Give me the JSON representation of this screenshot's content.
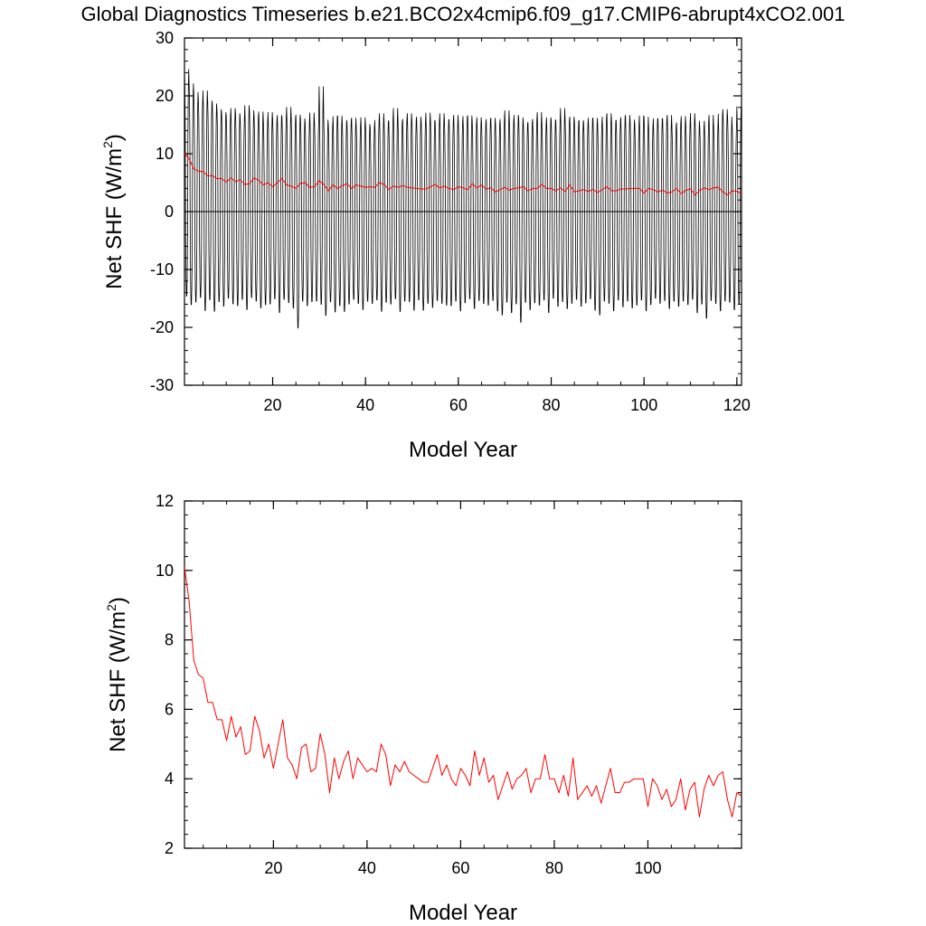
{
  "title": "Global Diagnostics Timeseries b.e21.BCO2x4cmip6.f09_g17.CMIP6-abrupt4xCO2.001",
  "colors": {
    "monthly": "#000000",
    "annual": "#ff0000",
    "zero_line": "#000000"
  },
  "chart_data": [
    {
      "type": "line",
      "xlabel": "Model Year",
      "ylabel": "Net SHF (W/m2)",
      "ylabel_main": "Net SHF (W/m",
      "ylabel_sup": "2",
      "ylabel_close": ")",
      "xlim": [
        1,
        121
      ],
      "ylim": [
        -30,
        30
      ],
      "xticks": [
        20,
        40,
        60,
        80,
        100,
        120
      ],
      "yticks": [
        -30,
        -20,
        -10,
        0,
        10,
        20,
        30
      ],
      "zero_line": true,
      "series": [
        {
          "style": "monthly",
          "color": "#000000",
          "resolution": "monthly (12 points per model year)",
          "annual_max": [
            25.0,
            22.5,
            21.0,
            19.5,
            21.3,
            19.5,
            19.0,
            18.0,
            17.5,
            17.0,
            18.2,
            17.3,
            16.6,
            18.7,
            17.8,
            16.8,
            17.6,
            16.0,
            17.5,
            16.3,
            17.0,
            16.6,
            18.4,
            16.5,
            17.1,
            16.4,
            15.6,
            17.4,
            16.0,
            22.0,
            16.2,
            15.2,
            16.8,
            16.9,
            15.7,
            16.1,
            16.5,
            15.2,
            16.6,
            15.4,
            14.9,
            16.1,
            17.3,
            16.0,
            16.0,
            18.2,
            15.9,
            16.3,
            17.3,
            16.1,
            16.7,
            16.0,
            17.4,
            16.1,
            16.0,
            17.3,
            16.1,
            16.3,
            17.0,
            15.8,
            16.8,
            16.9,
            15.7,
            16.6,
            15.7,
            16.3,
            16.5,
            15.6,
            16.3,
            17.8,
            16.0,
            17.0,
            16.6,
            15.7,
            15.7,
            16.3,
            17.5,
            15.5,
            16.6,
            16.2,
            16.0,
            18.2,
            16.2,
            16.7,
            16.0,
            16.1,
            15.6,
            16.5,
            16.5,
            15.6,
            16.7,
            17.3,
            16.1,
            16.1,
            16.6,
            17.0,
            16.2,
            15.4,
            16.9,
            16.7,
            15.0,
            16.4,
            16.4,
            16.4,
            17.0,
            15.2,
            15.7,
            16.8,
            15.5,
            17.3,
            16.0,
            15.0,
            16.0,
            17.0,
            15.0,
            17.2,
            18.0,
            16.7,
            15.0,
            18.5,
            11.0
          ],
          "annual_min": [
            -15.0,
            -16.5,
            -16.0,
            -15.2,
            -17.5,
            -15.6,
            -17.6,
            -15.9,
            -16.7,
            -15.3,
            -16.3,
            -16.6,
            -15.5,
            -17.3,
            -15.2,
            -15.8,
            -17.0,
            -16.4,
            -16.3,
            -15.4,
            -17.8,
            -15.5,
            -16.1,
            -17.0,
            -20.5,
            -15.8,
            -16.6,
            -15.9,
            -15.8,
            -16.4,
            -18.3,
            -15.9,
            -17.7,
            -16.6,
            -17.6,
            -16.3,
            -15.5,
            -16.2,
            -17.3,
            -15.8,
            -16.2,
            -15.6,
            -17.6,
            -16.0,
            -16.3,
            -15.4,
            -17.6,
            -15.8,
            -15.9,
            -17.4,
            -15.6,
            -17.4,
            -16.2,
            -16.9,
            -15.7,
            -16.2,
            -16.5,
            -16.6,
            -15.8,
            -17.5,
            -16.1,
            -15.4,
            -17.1,
            -15.7,
            -16.2,
            -16.5,
            -15.7,
            -17.5,
            -18.2,
            -16.0,
            -17.8,
            -16.3,
            -19.5,
            -16.0,
            -17.3,
            -16.1,
            -16.5,
            -15.6,
            -17.8,
            -15.3,
            -16.7,
            -15.9,
            -17.1,
            -16.2,
            -15.5,
            -16.7,
            -16.1,
            -15.4,
            -17.4,
            -18.2,
            -15.8,
            -16.2,
            -17.5,
            -15.6,
            -16.8,
            -15.8,
            -17.0,
            -16.5,
            -15.6,
            -17.5,
            -16.4,
            -15.3,
            -16.2,
            -15.7,
            -17.1,
            -15.8,
            -16.7,
            -15.8,
            -16.4,
            -15.5,
            -17.8,
            -16.3,
            -18.8,
            -15.7,
            -16.2,
            -17.5,
            -15.8,
            -16.0,
            -17.3,
            -16.4,
            -18.5
          ]
        },
        {
          "style": "annual_mean",
          "color": "#ff0000",
          "x": [
            1,
            2,
            3,
            4,
            5,
            6,
            7,
            8,
            9,
            10,
            11,
            12,
            13,
            14,
            15,
            16,
            17,
            18,
            19,
            20,
            21,
            22,
            23,
            24,
            25,
            26,
            27,
            28,
            29,
            30,
            31,
            32,
            33,
            34,
            35,
            36,
            37,
            38,
            39,
            40,
            41,
            42,
            43,
            44,
            45,
            46,
            47,
            48,
            49,
            50,
            51,
            52,
            53,
            54,
            55,
            56,
            57,
            58,
            59,
            60,
            61,
            62,
            63,
            64,
            65,
            66,
            67,
            68,
            69,
            70,
            71,
            72,
            73,
            74,
            75,
            76,
            77,
            78,
            79,
            80,
            81,
            82,
            83,
            84,
            85,
            86,
            87,
            88,
            89,
            90,
            91,
            92,
            93,
            94,
            95,
            96,
            97,
            98,
            99,
            100,
            101,
            102,
            103,
            104,
            105,
            106,
            107,
            108,
            109,
            110,
            111,
            112,
            113,
            114,
            115,
            116,
            117,
            118,
            119,
            120,
            121
          ],
          "values": [
            10.1,
            9.1,
            7.4,
            7.0,
            6.9,
            6.2,
            6.2,
            5.7,
            5.7,
            5.1,
            5.8,
            5.2,
            5.5,
            4.7,
            4.8,
            5.8,
            5.4,
            4.6,
            5.0,
            4.3,
            5.0,
            5.7,
            4.6,
            4.4,
            4.0,
            4.9,
            5.0,
            4.2,
            4.3,
            5.3,
            4.7,
            3.6,
            4.6,
            4.0,
            4.5,
            4.8,
            4.0,
            4.6,
            4.4,
            4.2,
            4.3,
            4.2,
            5.0,
            4.7,
            3.8,
            4.4,
            4.2,
            4.5,
            4.2,
            4.1,
            4.0,
            3.9,
            3.9,
            4.3,
            4.7,
            4.1,
            4.4,
            4.0,
            3.8,
            4.3,
            4.1,
            3.8,
            4.8,
            4.1,
            4.6,
            3.9,
            4.1,
            3.4,
            3.8,
            4.2,
            3.7,
            4.0,
            4.1,
            4.3,
            3.6,
            4.0,
            4.0,
            4.7,
            4.0,
            4.0,
            3.6,
            4.1,
            3.5,
            4.6,
            3.4,
            3.6,
            3.8,
            3.5,
            3.8,
            3.3,
            3.8,
            4.3,
            3.6,
            3.6,
            3.9,
            3.9,
            4.0,
            4.0,
            4.0,
            3.2,
            4.0,
            3.8,
            3.4,
            3.7,
            3.2,
            3.4,
            4.0,
            3.1,
            3.7,
            3.9,
            2.9,
            3.7,
            4.1,
            3.8,
            4.1,
            4.2,
            3.4,
            2.9,
            3.6,
            3.5,
            3.1
          ]
        }
      ]
    },
    {
      "type": "line",
      "xlabel": "Model Year",
      "ylabel": "Net SHF (W/m2)",
      "ylabel_main": "Net SHF (W/m",
      "ylabel_sup": "2",
      "ylabel_close": ")",
      "xlim": [
        1,
        120
      ],
      "ylim": [
        2,
        12
      ],
      "xticks": [
        20,
        40,
        60,
        80,
        100
      ],
      "yticks": [
        2,
        4,
        6,
        8,
        10,
        12
      ],
      "series": [
        {
          "style": "annual_mean",
          "color": "#ff0000",
          "x": [
            1,
            2,
            3,
            4,
            5,
            6,
            7,
            8,
            9,
            10,
            11,
            12,
            13,
            14,
            15,
            16,
            17,
            18,
            19,
            20,
            21,
            22,
            23,
            24,
            25,
            26,
            27,
            28,
            29,
            30,
            31,
            32,
            33,
            34,
            35,
            36,
            37,
            38,
            39,
            40,
            41,
            42,
            43,
            44,
            45,
            46,
            47,
            48,
            49,
            50,
            51,
            52,
            53,
            54,
            55,
            56,
            57,
            58,
            59,
            60,
            61,
            62,
            63,
            64,
            65,
            66,
            67,
            68,
            69,
            70,
            71,
            72,
            73,
            74,
            75,
            76,
            77,
            78,
            79,
            80,
            81,
            82,
            83,
            84,
            85,
            86,
            87,
            88,
            89,
            90,
            91,
            92,
            93,
            94,
            95,
            96,
            97,
            98,
            99,
            100,
            101,
            102,
            103,
            104,
            105,
            106,
            107,
            108,
            109,
            110,
            111,
            112,
            113,
            114,
            115,
            116,
            117,
            118,
            119,
            120
          ],
          "values": [
            10.1,
            9.1,
            7.4,
            7.0,
            6.9,
            6.2,
            6.2,
            5.7,
            5.7,
            5.1,
            5.8,
            5.2,
            5.5,
            4.7,
            4.8,
            5.8,
            5.4,
            4.6,
            5.0,
            4.3,
            5.0,
            5.7,
            4.6,
            4.4,
            4.0,
            4.9,
            5.0,
            4.2,
            4.3,
            5.3,
            4.7,
            3.6,
            4.6,
            4.0,
            4.5,
            4.8,
            4.0,
            4.6,
            4.4,
            4.2,
            4.3,
            4.2,
            5.0,
            4.7,
            3.8,
            4.4,
            4.2,
            4.5,
            4.2,
            4.1,
            4.0,
            3.9,
            3.9,
            4.3,
            4.7,
            4.1,
            4.4,
            4.0,
            3.8,
            4.3,
            4.1,
            3.8,
            4.8,
            4.1,
            4.6,
            3.9,
            4.1,
            3.4,
            3.8,
            4.2,
            3.7,
            4.0,
            4.1,
            4.3,
            3.6,
            4.0,
            4.0,
            4.7,
            4.0,
            4.0,
            3.6,
            4.1,
            3.5,
            4.6,
            3.4,
            3.6,
            3.8,
            3.5,
            3.8,
            3.3,
            3.8,
            4.3,
            3.6,
            3.6,
            3.9,
            3.9,
            4.0,
            4.0,
            4.0,
            3.2,
            4.0,
            3.8,
            3.4,
            3.7,
            3.2,
            3.4,
            4.0,
            3.1,
            3.7,
            3.9,
            2.9,
            3.7,
            4.1,
            3.8,
            4.1,
            4.2,
            3.4,
            2.9,
            3.6,
            3.5
          ]
        }
      ]
    }
  ]
}
